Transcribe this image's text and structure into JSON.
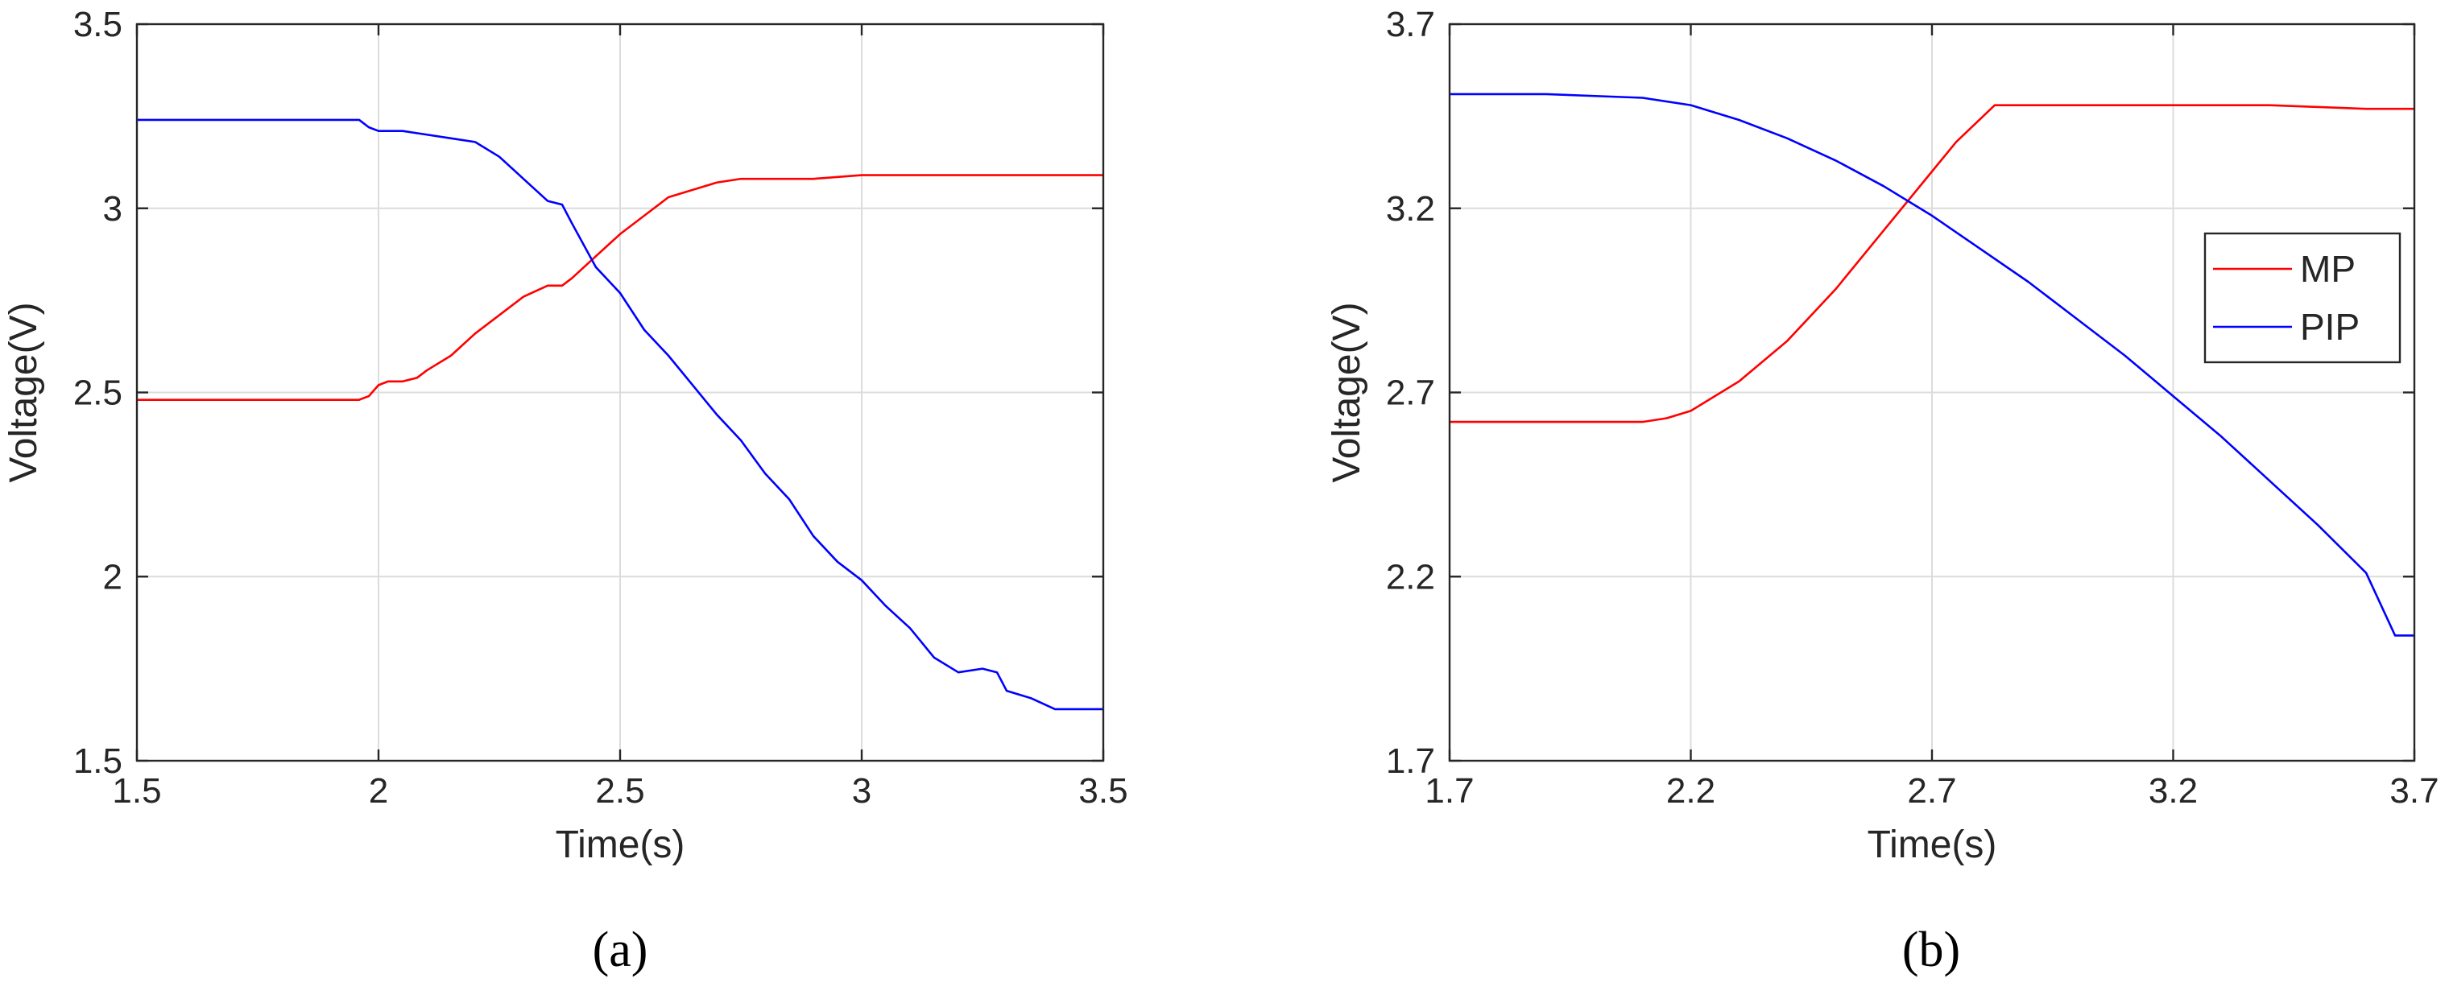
{
  "chart_data": [
    {
      "type": "line",
      "panel_label": "(a)",
      "xlabel": "Time(s)",
      "ylabel": "Voltage(V)",
      "xlim": [
        1.5,
        3.5
      ],
      "ylim": [
        1.5,
        3.5
      ],
      "x_ticks": [
        1.5,
        2,
        2.5,
        3,
        3.5
      ],
      "y_ticks": [
        1.5,
        2,
        2.5,
        3,
        3.5
      ],
      "x_tick_labels": [
        "1.5",
        "2",
        "2.5",
        "3",
        "3.5"
      ],
      "y_tick_labels": [
        "1.5",
        "2",
        "2.5",
        "3",
        "3.5"
      ],
      "grid": true,
      "legend": null,
      "series": [
        {
          "color": "#ff0000",
          "x": [
            1.5,
            1.6,
            1.7,
            1.8,
            1.9,
            1.96,
            1.98,
            2.0,
            2.02,
            2.05,
            2.08,
            2.1,
            2.15,
            2.2,
            2.25,
            2.3,
            2.35,
            2.38,
            2.4,
            2.45,
            2.5,
            2.55,
            2.6,
            2.65,
            2.7,
            2.75,
            2.8,
            2.9,
            3.0,
            3.1,
            3.2,
            3.3,
            3.4,
            3.5
          ],
          "y": [
            2.48,
            2.48,
            2.48,
            2.48,
            2.48,
            2.48,
            2.49,
            2.52,
            2.53,
            2.53,
            2.54,
            2.56,
            2.6,
            2.66,
            2.71,
            2.76,
            2.79,
            2.79,
            2.81,
            2.87,
            2.93,
            2.98,
            3.03,
            3.05,
            3.07,
            3.08,
            3.08,
            3.08,
            3.09,
            3.09,
            3.09,
            3.09,
            3.09,
            3.09
          ]
        },
        {
          "color": "#0000ff",
          "x": [
            1.5,
            1.6,
            1.7,
            1.8,
            1.9,
            1.96,
            1.98,
            2.0,
            2.05,
            2.1,
            2.15,
            2.2,
            2.25,
            2.3,
            2.35,
            2.38,
            2.4,
            2.45,
            2.5,
            2.55,
            2.6,
            2.65,
            2.7,
            2.75,
            2.8,
            2.85,
            2.9,
            2.95,
            3.0,
            3.05,
            3.1,
            3.15,
            3.2,
            3.25,
            3.28,
            3.3,
            3.35,
            3.4,
            3.45,
            3.5
          ],
          "y": [
            3.24,
            3.24,
            3.24,
            3.24,
            3.24,
            3.24,
            3.22,
            3.21,
            3.21,
            3.2,
            3.19,
            3.18,
            3.14,
            3.08,
            3.02,
            3.01,
            2.96,
            2.84,
            2.77,
            2.67,
            2.6,
            2.52,
            2.44,
            2.37,
            2.28,
            2.21,
            2.11,
            2.04,
            1.99,
            1.92,
            1.86,
            1.78,
            1.74,
            1.75,
            1.74,
            1.69,
            1.67,
            1.64,
            1.64,
            1.64
          ]
        }
      ]
    },
    {
      "type": "line",
      "panel_label": "(b)",
      "xlabel": "Time(s)",
      "ylabel": "Voltage(V)",
      "xlim": [
        1.7,
        3.7
      ],
      "ylim": [
        1.7,
        3.7
      ],
      "x_ticks": [
        1.7,
        2.2,
        2.7,
        3.2,
        3.7
      ],
      "y_ticks": [
        1.7,
        2.2,
        2.7,
        3.2,
        3.7
      ],
      "x_tick_labels": [
        "1.7",
        "2.2",
        "2.7",
        "3.2",
        "3.7"
      ],
      "y_tick_labels": [
        "1.7",
        "2.2",
        "2.7",
        "3.2",
        "3.7"
      ],
      "grid": true,
      "legend": "top-right",
      "series": [
        {
          "name": "MP",
          "color": "#ff0000",
          "x": [
            1.7,
            1.9,
            2.1,
            2.15,
            2.2,
            2.3,
            2.4,
            2.5,
            2.6,
            2.7,
            2.75,
            2.83,
            3.0,
            3.2,
            3.4,
            3.6,
            3.7
          ],
          "y": [
            2.62,
            2.62,
            2.62,
            2.63,
            2.65,
            2.73,
            2.84,
            2.98,
            3.14,
            3.3,
            3.38,
            3.48,
            3.48,
            3.48,
            3.48,
            3.47,
            3.47
          ]
        },
        {
          "name": "PIP",
          "color": "#0000ff",
          "x": [
            1.7,
            1.9,
            2.1,
            2.2,
            2.3,
            2.4,
            2.5,
            2.6,
            2.7,
            2.8,
            2.9,
            3.0,
            3.1,
            3.2,
            3.3,
            3.4,
            3.5,
            3.6,
            3.66,
            3.7
          ],
          "y": [
            3.51,
            3.51,
            3.5,
            3.48,
            3.44,
            3.39,
            3.33,
            3.26,
            3.18,
            3.09,
            3.0,
            2.9,
            2.8,
            2.69,
            2.58,
            2.46,
            2.34,
            2.21,
            2.04,
            2.04
          ]
        }
      ]
    }
  ]
}
